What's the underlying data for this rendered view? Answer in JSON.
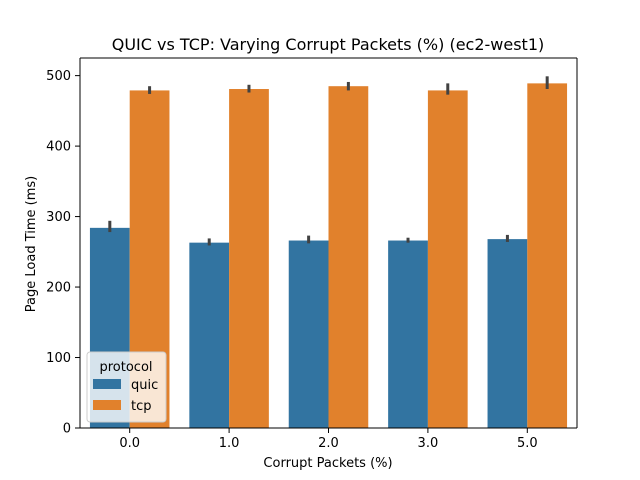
{
  "chart_data": {
    "type": "bar",
    "title": "QUIC vs TCP: Varying Corrupt Packets (%) (ec2-west1)",
    "xlabel": "Corrupt Packets (%)",
    "ylabel": "Page Load Time (ms)",
    "categories": [
      "0.0",
      "1.0",
      "2.0",
      "3.0",
      "5.0"
    ],
    "ylim": [
      0,
      525
    ],
    "yticks": [
      0,
      100,
      200,
      300,
      400,
      500
    ],
    "grid": false,
    "legend": {
      "title": "protocol",
      "position": "lower-left"
    },
    "series": [
      {
        "name": "quic",
        "color": "#3274a1",
        "values": [
          284,
          263,
          266,
          266,
          268
        ],
        "error_low": [
          278,
          259,
          262,
          263,
          264
        ],
        "error_high": [
          294,
          269,
          273,
          270,
          274
        ]
      },
      {
        "name": "tcp",
        "color": "#e1812c",
        "values": [
          479,
          481,
          485,
          479,
          489
        ],
        "error_low": [
          474,
          476,
          479,
          473,
          481
        ],
        "error_high": [
          485,
          487,
          491,
          489,
          499
        ]
      }
    ],
    "errorbar_color": "#424242"
  }
}
